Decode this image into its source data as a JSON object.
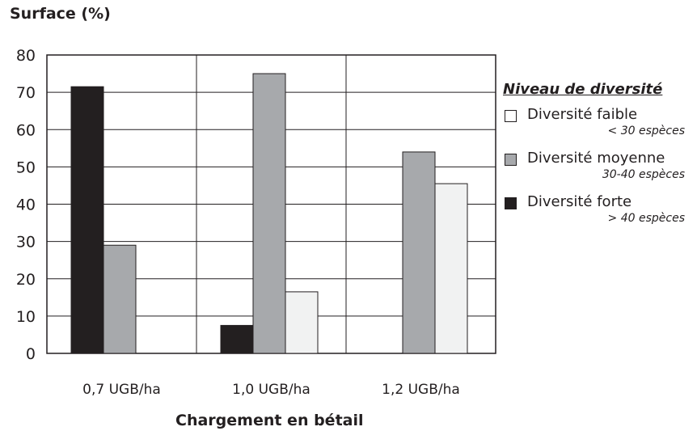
{
  "chart_data": {
    "type": "bar",
    "title": "",
    "ylabel": "Surface (%)",
    "xlabel": "Chargement en bétail",
    "ylim": [
      0,
      80
    ],
    "yticks": [
      0,
      10,
      20,
      30,
      40,
      50,
      60,
      70,
      80
    ],
    "categories": [
      "0,7 UGB/ha",
      "1,0 UGB/ha",
      "1,2 UGB/ha"
    ],
    "series": [
      {
        "name": "Diversité forte",
        "note": "> 40 espèces",
        "color": "#231f20",
        "values": [
          71.5,
          7.5,
          0
        ]
      },
      {
        "name": "Diversité moyenne",
        "note": "30-40 espèces",
        "color": "#a7a9ac",
        "values": [
          29,
          75,
          54
        ]
      },
      {
        "name": "Diversité faible",
        "note": "< 30 espèces",
        "color": "#f1f2f2",
        "values": [
          0,
          16.5,
          45.5
        ]
      }
    ],
    "legend": {
      "title": "Niveau de diversité",
      "placement": "right",
      "items": [
        {
          "label": "Diversité faible",
          "note": "< 30 espèces",
          "color": "#ffffff"
        },
        {
          "label": "Diversité moyenne",
          "note": "30-40 espèces",
          "color": "#a7a9ac"
        },
        {
          "label": "Diversité forte",
          "note": "> 40 espèces",
          "color": "#231f20"
        }
      ]
    },
    "grid": true
  }
}
